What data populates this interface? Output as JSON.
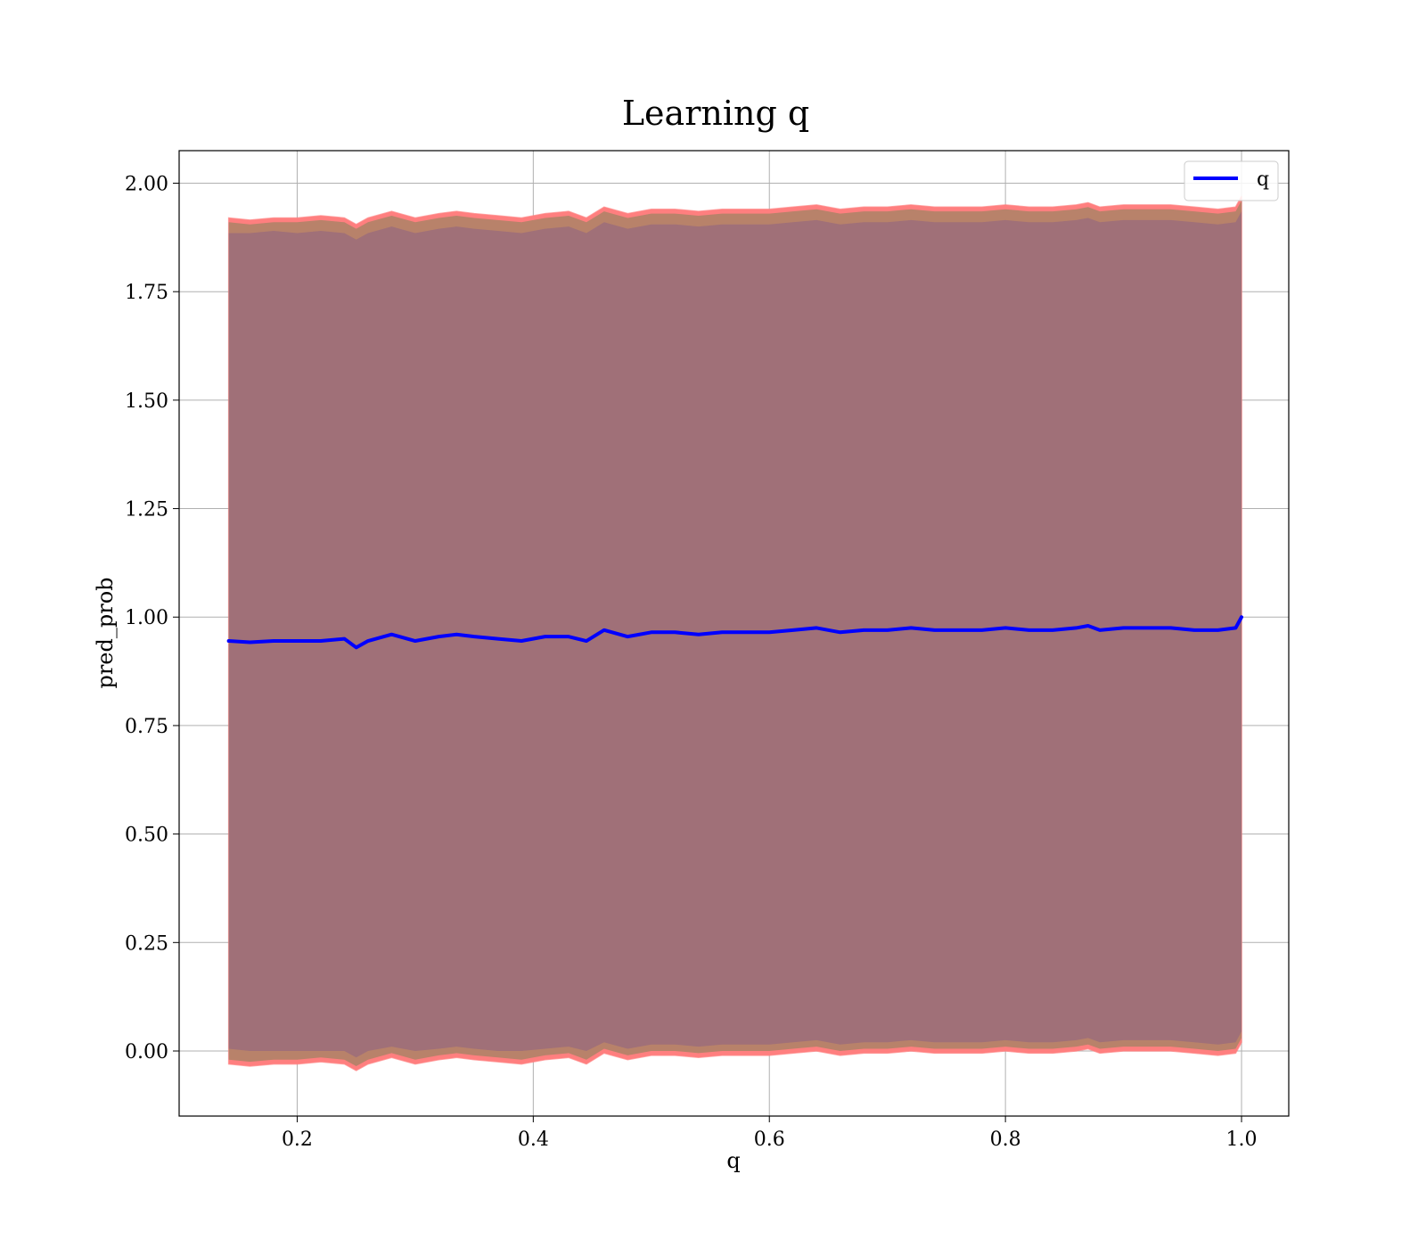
{
  "chart_data": {
    "type": "area",
    "title": "Learning q",
    "xlabel": "q",
    "ylabel": "pred_prob",
    "xlim": [
      0.1,
      1.04
    ],
    "ylim": [
      -0.15,
      2.075
    ],
    "x_ticks": [
      0.2,
      0.4,
      0.6,
      0.8,
      1.0
    ],
    "x_tick_labels": [
      "0.2",
      "0.4",
      "0.6",
      "0.8",
      "1.0"
    ],
    "y_ticks": [
      0.0,
      0.25,
      0.5,
      0.75,
      1.0,
      1.25,
      1.5,
      1.75,
      2.0
    ],
    "y_tick_labels": [
      "0.00",
      "0.25",
      "0.50",
      "0.75",
      "1.00",
      "1.25",
      "1.50",
      "1.75",
      "2.00"
    ],
    "grid": true,
    "legend": {
      "placement": "top-right",
      "entries": [
        {
          "label": "q",
          "color": "#0000ff"
        }
      ]
    },
    "colors": {
      "line": "#0000ff",
      "outer_band": "#ff7f7f",
      "middle_band": "#b8826a",
      "inner_band": "#a07078",
      "grid": "#b0b0b0"
    },
    "x": [
      0.142,
      0.16,
      0.18,
      0.2,
      0.22,
      0.24,
      0.25,
      0.26,
      0.28,
      0.3,
      0.32,
      0.335,
      0.35,
      0.37,
      0.39,
      0.41,
      0.43,
      0.445,
      0.46,
      0.48,
      0.5,
      0.52,
      0.54,
      0.56,
      0.58,
      0.6,
      0.62,
      0.64,
      0.66,
      0.68,
      0.7,
      0.72,
      0.74,
      0.76,
      0.78,
      0.8,
      0.82,
      0.84,
      0.86,
      0.87,
      0.88,
      0.9,
      0.92,
      0.94,
      0.96,
      0.98,
      0.995,
      1.0
    ],
    "series": [
      {
        "name": "q",
        "mean": [
          0.945,
          0.942,
          0.945,
          0.945,
          0.945,
          0.95,
          0.93,
          0.945,
          0.96,
          0.945,
          0.955,
          0.96,
          0.955,
          0.95,
          0.945,
          0.955,
          0.955,
          0.945,
          0.97,
          0.955,
          0.965,
          0.965,
          0.96,
          0.965,
          0.965,
          0.965,
          0.97,
          0.975,
          0.965,
          0.97,
          0.97,
          0.975,
          0.97,
          0.97,
          0.97,
          0.975,
          0.97,
          0.97,
          0.975,
          0.98,
          0.97,
          0.975,
          0.975,
          0.975,
          0.97,
          0.97,
          0.975,
          1.0
        ],
        "lower_outer": [
          -0.03,
          -0.035,
          -0.03,
          -0.03,
          -0.025,
          -0.03,
          -0.045,
          -0.03,
          -0.015,
          -0.03,
          -0.02,
          -0.015,
          -0.02,
          -0.025,
          -0.03,
          -0.02,
          -0.015,
          -0.03,
          -0.005,
          -0.02,
          -0.01,
          -0.01,
          -0.015,
          -0.01,
          -0.01,
          -0.01,
          -0.005,
          0.0,
          -0.01,
          -0.005,
          -0.005,
          0.0,
          -0.005,
          -0.005,
          -0.005,
          0.0,
          -0.005,
          -0.005,
          0.0,
          0.005,
          -0.005,
          0.0,
          0.0,
          0.0,
          -0.005,
          -0.01,
          -0.005,
          0.02
        ],
        "upper_outer": [
          1.92,
          1.915,
          1.92,
          1.92,
          1.925,
          1.92,
          1.905,
          1.92,
          1.935,
          1.92,
          1.93,
          1.935,
          1.93,
          1.925,
          1.92,
          1.93,
          1.935,
          1.92,
          1.945,
          1.93,
          1.94,
          1.94,
          1.935,
          1.94,
          1.94,
          1.94,
          1.945,
          1.95,
          1.94,
          1.945,
          1.945,
          1.95,
          1.945,
          1.945,
          1.945,
          1.95,
          1.945,
          1.945,
          1.95,
          1.955,
          1.945,
          1.95,
          1.95,
          1.95,
          1.945,
          1.94,
          1.945,
          1.97
        ],
        "lower_mid": [
          -0.02,
          -0.025,
          -0.02,
          -0.02,
          -0.015,
          -0.02,
          -0.035,
          -0.02,
          -0.005,
          -0.02,
          -0.01,
          -0.005,
          -0.01,
          -0.015,
          -0.02,
          -0.01,
          -0.005,
          -0.02,
          0.005,
          -0.01,
          0.0,
          0.0,
          -0.005,
          0.0,
          0.0,
          0.0,
          0.005,
          0.01,
          0.0,
          0.005,
          0.005,
          0.01,
          0.005,
          0.005,
          0.005,
          0.01,
          0.005,
          0.005,
          0.01,
          0.015,
          0.005,
          0.01,
          0.01,
          0.01,
          0.005,
          0.0,
          0.005,
          0.03
        ],
        "upper_mid": [
          1.91,
          1.905,
          1.91,
          1.91,
          1.915,
          1.91,
          1.895,
          1.91,
          1.925,
          1.91,
          1.92,
          1.925,
          1.92,
          1.915,
          1.91,
          1.92,
          1.925,
          1.91,
          1.935,
          1.92,
          1.93,
          1.93,
          1.925,
          1.93,
          1.93,
          1.93,
          1.935,
          1.94,
          1.93,
          1.935,
          1.935,
          1.94,
          1.935,
          1.935,
          1.935,
          1.94,
          1.935,
          1.935,
          1.94,
          1.945,
          1.935,
          1.94,
          1.94,
          1.94,
          1.935,
          1.93,
          1.935,
          1.96
        ],
        "lower_inner": [
          0.005,
          0.0,
          0.0,
          0.0,
          0.0,
          0.0,
          -0.015,
          0.0,
          0.01,
          0.0,
          0.005,
          0.01,
          0.005,
          0.0,
          0.0,
          0.005,
          0.01,
          0.0,
          0.02,
          0.005,
          0.015,
          0.015,
          0.01,
          0.015,
          0.015,
          0.015,
          0.02,
          0.025,
          0.015,
          0.02,
          0.02,
          0.025,
          0.02,
          0.02,
          0.02,
          0.025,
          0.02,
          0.02,
          0.025,
          0.03,
          0.02,
          0.025,
          0.025,
          0.025,
          0.02,
          0.015,
          0.02,
          0.045
        ],
        "upper_inner": [
          1.885,
          1.885,
          1.89,
          1.885,
          1.89,
          1.885,
          1.87,
          1.885,
          1.9,
          1.885,
          1.895,
          1.9,
          1.895,
          1.89,
          1.885,
          1.895,
          1.9,
          1.885,
          1.91,
          1.895,
          1.905,
          1.905,
          1.9,
          1.905,
          1.905,
          1.905,
          1.91,
          1.915,
          1.905,
          1.91,
          1.91,
          1.915,
          1.91,
          1.91,
          1.91,
          1.915,
          1.91,
          1.91,
          1.915,
          1.92,
          1.91,
          1.915,
          1.915,
          1.915,
          1.91,
          1.905,
          1.91,
          1.935
        ]
      }
    ]
  }
}
